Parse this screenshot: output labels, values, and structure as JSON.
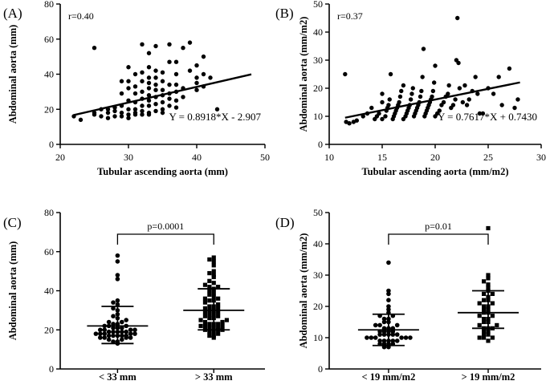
{
  "chart_data": [
    {
      "id": "A",
      "type": "scatter",
      "panel_label": "(A)",
      "xlabel": "Tubular ascending aorta (mm)",
      "ylabel": "Abdominal aorta (mm)",
      "xlim": [
        20,
        50
      ],
      "ylim": [
        0,
        80
      ],
      "xticks": [
        20,
        30,
        40,
        50
      ],
      "yticks": [
        0,
        20,
        40,
        60,
        80
      ],
      "r_text": "r=0.40",
      "equation_text": "Y = 0.8918*X - 2.907",
      "fit": {
        "slope": 0.8918,
        "intercept": -2.907,
        "x_range": [
          22,
          48
        ]
      },
      "points": [
        [
          22,
          16
        ],
        [
          23,
          14
        ],
        [
          25,
          55
        ],
        [
          25,
          17
        ],
        [
          25,
          18
        ],
        [
          26,
          16
        ],
        [
          26,
          20
        ],
        [
          27,
          15
        ],
        [
          27,
          18
        ],
        [
          27,
          20
        ],
        [
          28,
          16
        ],
        [
          28,
          19
        ],
        [
          28,
          21
        ],
        [
          29,
          22
        ],
        [
          29,
          29
        ],
        [
          29,
          36
        ],
        [
          29,
          16
        ],
        [
          29,
          18
        ],
        [
          30,
          15
        ],
        [
          30,
          17
        ],
        [
          30,
          20
        ],
        [
          30,
          25
        ],
        [
          30,
          32
        ],
        [
          30,
          36
        ],
        [
          30,
          44
        ],
        [
          31,
          17
        ],
        [
          31,
          18
        ],
        [
          31,
          20
        ],
        [
          31,
          24
        ],
        [
          31,
          29
        ],
        [
          31,
          33
        ],
        [
          31,
          40
        ],
        [
          32,
          57
        ],
        [
          32,
          17
        ],
        [
          32,
          19
        ],
        [
          32,
          22
        ],
        [
          32,
          26
        ],
        [
          32,
          30
        ],
        [
          32,
          36
        ],
        [
          32,
          41
        ],
        [
          33,
          18
        ],
        [
          33,
          22
        ],
        [
          33,
          25
        ],
        [
          33,
          28
        ],
        [
          33,
          32
        ],
        [
          33,
          35
        ],
        [
          33,
          38
        ],
        [
          33,
          44
        ],
        [
          33,
          52
        ],
        [
          33,
          17
        ],
        [
          34,
          19
        ],
        [
          34,
          23
        ],
        [
          34,
          27
        ],
        [
          34,
          31
        ],
        [
          34,
          34
        ],
        [
          34,
          38
        ],
        [
          34,
          42
        ],
        [
          34,
          56
        ],
        [
          35,
          20
        ],
        [
          35,
          24
        ],
        [
          35,
          28
        ],
        [
          35,
          31
        ],
        [
          35,
          36
        ],
        [
          35,
          41
        ],
        [
          35,
          18
        ],
        [
          36,
          22
        ],
        [
          36,
          26
        ],
        [
          36,
          29
        ],
        [
          36,
          34
        ],
        [
          36,
          47
        ],
        [
          36,
          57
        ],
        [
          37,
          21
        ],
        [
          37,
          25
        ],
        [
          37,
          30
        ],
        [
          37,
          34
        ],
        [
          37,
          40
        ],
        [
          37,
          47
        ],
        [
          38,
          27
        ],
        [
          38,
          32
        ],
        [
          38,
          55
        ],
        [
          39,
          42
        ],
        [
          39,
          58
        ],
        [
          40,
          31
        ],
        [
          40,
          35
        ],
        [
          40,
          38
        ],
        [
          40,
          45
        ],
        [
          41,
          33
        ],
        [
          41,
          40
        ],
        [
          41,
          50
        ],
        [
          42,
          38
        ],
        [
          43,
          20
        ]
      ]
    },
    {
      "id": "B",
      "type": "scatter",
      "panel_label": "(B)",
      "xlabel": "Tubular ascending aorta (mm/m2)",
      "ylabel": "Abdominal aorta (mm/m2)",
      "xlim": [
        10,
        30
      ],
      "ylim": [
        0,
        50
      ],
      "xticks": [
        10,
        15,
        20,
        25,
        30
      ],
      "yticks": [
        0,
        10,
        20,
        30,
        40,
        50
      ],
      "r_text": "r=0.37",
      "equation_text": "Y = 0.7617*X + 0.7430",
      "fit": {
        "slope": 0.7617,
        "intercept": 0.743,
        "x_range": [
          11.5,
          28
        ]
      },
      "points": [
        [
          11.5,
          25
        ],
        [
          11.6,
          8
        ],
        [
          11.9,
          7.5
        ],
        [
          12.3,
          8
        ],
        [
          12.6,
          8.5
        ],
        [
          13.2,
          10
        ],
        [
          13.6,
          11
        ],
        [
          14,
          13
        ],
        [
          14.3,
          9
        ],
        [
          14.5,
          10
        ],
        [
          14.7,
          11
        ],
        [
          15,
          15
        ],
        [
          15,
          18
        ],
        [
          15,
          9
        ],
        [
          15.3,
          10
        ],
        [
          15.4,
          12
        ],
        [
          15.5,
          13
        ],
        [
          15.6,
          14
        ],
        [
          15.7,
          16
        ],
        [
          15.8,
          25
        ],
        [
          16,
          9
        ],
        [
          16.1,
          10
        ],
        [
          16.2,
          11
        ],
        [
          16.3,
          12
        ],
        [
          16.4,
          13
        ],
        [
          16.5,
          14
        ],
        [
          16.6,
          15
        ],
        [
          16.7,
          17
        ],
        [
          16.8,
          19
        ],
        [
          17,
          9
        ],
        [
          17,
          21
        ],
        [
          17.2,
          10
        ],
        [
          17.3,
          11
        ],
        [
          17.4,
          12
        ],
        [
          17.5,
          13
        ],
        [
          17.6,
          14
        ],
        [
          17.7,
          16
        ],
        [
          17.8,
          18
        ],
        [
          17.9,
          20
        ],
        [
          18,
          10
        ],
        [
          18.1,
          11
        ],
        [
          18.2,
          12
        ],
        [
          18.3,
          13
        ],
        [
          18.4,
          14
        ],
        [
          18.5,
          15
        ],
        [
          18.6,
          17
        ],
        [
          18.7,
          19
        ],
        [
          18.8,
          24
        ],
        [
          18.9,
          34
        ],
        [
          19,
          10
        ],
        [
          19.1,
          11
        ],
        [
          19.2,
          12
        ],
        [
          19.3,
          13
        ],
        [
          19.4,
          14
        ],
        [
          19.5,
          15
        ],
        [
          19.6,
          16
        ],
        [
          19.7,
          17
        ],
        [
          19.8,
          19
        ],
        [
          19.9,
          22
        ],
        [
          20,
          28
        ],
        [
          20,
          10
        ],
        [
          20.2,
          11
        ],
        [
          20.4,
          12
        ],
        [
          20.6,
          14
        ],
        [
          20.8,
          15
        ],
        [
          21,
          17
        ],
        [
          21.2,
          18
        ],
        [
          21.3,
          21
        ],
        [
          21.5,
          13
        ],
        [
          21.7,
          14
        ],
        [
          21.9,
          16
        ],
        [
          22,
          30
        ],
        [
          22.1,
          45
        ],
        [
          22.2,
          29
        ],
        [
          22.3,
          20
        ],
        [
          22.6,
          15
        ],
        [
          22.8,
          21
        ],
        [
          23,
          14
        ],
        [
          23.2,
          16
        ],
        [
          23.5,
          19
        ],
        [
          23.8,
          24
        ],
        [
          24,
          18
        ],
        [
          24.2,
          11
        ],
        [
          24.5,
          11
        ],
        [
          25,
          20
        ],
        [
          25.5,
          18
        ],
        [
          26,
          24
        ],
        [
          26.3,
          14
        ],
        [
          27,
          27
        ],
        [
          27.5,
          13
        ],
        [
          27.8,
          16
        ]
      ]
    },
    {
      "id": "C",
      "type": "scatter",
      "panel_label": "(C)",
      "ylabel": "Abdominal aorta (mm)",
      "ylim": [
        0,
        80
      ],
      "yticks": [
        0,
        20,
        40,
        60,
        80
      ],
      "categories": [
        "< 33 mm",
        "> 33 mm"
      ],
      "p_text": "p=0.0001",
      "groups": [
        {
          "name": "< 33 mm",
          "marker": "circle",
          "mean": 22,
          "sd_low": 13,
          "sd_high": 32,
          "values": [
            58,
            55,
            48,
            46,
            35,
            34,
            33,
            31,
            30,
            28,
            27,
            26,
            25,
            24,
            24,
            23,
            23,
            22,
            22,
            22,
            21,
            21,
            21,
            20,
            20,
            20,
            20,
            19,
            19,
            19,
            19,
            19,
            18,
            18,
            18,
            18,
            18,
            17,
            17,
            17,
            17,
            17,
            16,
            16,
            16,
            16,
            15,
            15,
            14,
            14,
            13
          ]
        },
        {
          "name": "> 33 mm",
          "marker": "square",
          "mean": 30,
          "sd_low": 20,
          "sd_high": 41,
          "values": [
            57,
            56,
            55,
            53,
            50,
            49,
            48,
            47,
            45,
            44,
            43,
            42,
            42,
            41,
            40,
            39,
            38,
            37,
            36,
            36,
            35,
            35,
            34,
            33,
            32,
            32,
            31,
            31,
            30,
            30,
            29,
            29,
            28,
            28,
            27,
            27,
            26,
            26,
            25,
            25,
            24,
            24,
            23,
            23,
            23,
            22,
            22,
            22,
            21,
            21,
            21,
            20,
            20,
            20,
            19,
            19,
            18,
            17,
            17,
            16
          ]
        }
      ]
    },
    {
      "id": "D",
      "type": "scatter",
      "panel_label": "(D)",
      "ylabel": "Abdominal aorta (mm/m2)",
      "ylim": [
        0,
        50
      ],
      "yticks": [
        0,
        10,
        20,
        30,
        40,
        50
      ],
      "categories": [
        "< 19 mm/m2",
        "> 19 mm/m2"
      ],
      "p_text": "p=0.01",
      "groups": [
        {
          "name": "< 19 mm/m2",
          "marker": "circle",
          "mean": 12.5,
          "sd_low": 7.5,
          "sd_high": 17.5,
          "values": [
            34,
            25,
            24,
            22,
            20,
            19,
            18,
            17,
            17,
            16,
            16,
            15,
            15,
            14,
            14,
            14,
            13,
            13,
            13,
            12,
            12,
            12,
            12,
            11,
            11,
            11,
            11,
            11,
            10,
            10,
            10,
            10,
            10,
            10,
            9,
            9,
            9,
            9,
            9,
            8,
            8,
            8,
            8,
            7,
            7
          ]
        },
        {
          "name": "> 19 mm/m2",
          "marker": "square",
          "mean": 18,
          "sd_low": 13,
          "sd_high": 25,
          "values": [
            45,
            30,
            29,
            28,
            27,
            26,
            25,
            24,
            24,
            23,
            22,
            22,
            21,
            21,
            20,
            20,
            19,
            19,
            18,
            18,
            17,
            17,
            16,
            16,
            15,
            15,
            14,
            14,
            13,
            13,
            13,
            12,
            12,
            11,
            11,
            10,
            10,
            10,
            9
          ]
        }
      ]
    }
  ]
}
